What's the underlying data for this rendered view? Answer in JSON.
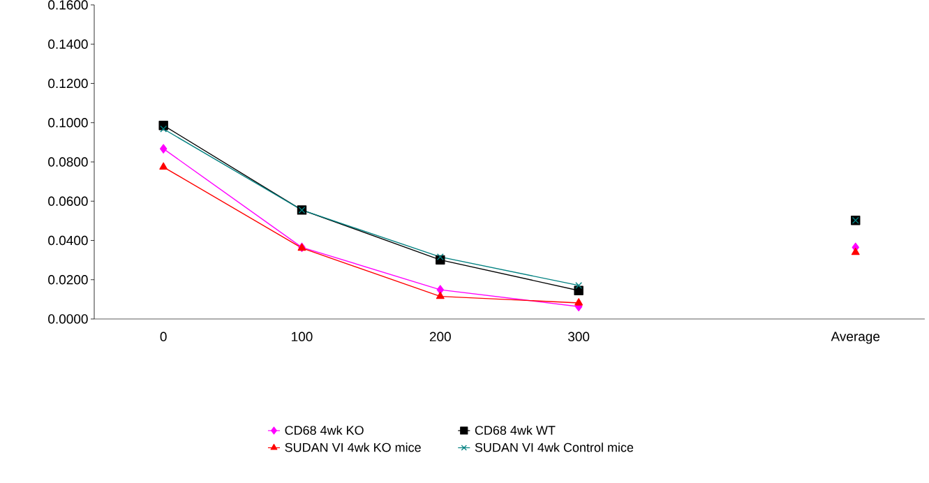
{
  "chart_data": {
    "type": "line",
    "categories": [
      "0",
      "100",
      "200",
      "300",
      null,
      "Average"
    ],
    "series": [
      {
        "name": "CD68 4wk KO",
        "color": "#ff00ff",
        "marker": "diamond",
        "values": [
          0.0867,
          0.0365,
          0.0149,
          0.0063,
          null,
          0.0365
        ]
      },
      {
        "name": "CD68 4wk WT",
        "color": "#000000",
        "marker": "square",
        "values": [
          0.0986,
          0.0555,
          0.0301,
          0.0145,
          null,
          0.0502
        ]
      },
      {
        "name": "SUDAN VI 4wk KO mice",
        "color": "#ff0000",
        "marker": "triangle",
        "values": [
          0.0774,
          0.0361,
          0.0115,
          0.0082,
          null,
          0.0339
        ]
      },
      {
        "name": "SUDAN VI 4wk Control mice",
        "color": "#008080",
        "marker": "cross",
        "values": [
          0.0968,
          0.0555,
          0.0316,
          0.0171,
          null,
          0.0502
        ]
      }
    ],
    "ylim": [
      0,
      0.16
    ],
    "yticks": [
      {
        "value": 0,
        "label": "0.0000"
      },
      {
        "value": 0.02,
        "label": "0.0200"
      },
      {
        "value": 0.04,
        "label": "0.0400"
      },
      {
        "value": 0.06,
        "label": "0.0600"
      },
      {
        "value": 0.08,
        "label": "0.0800"
      },
      {
        "value": 0.1,
        "label": "0.1000"
      },
      {
        "value": 0.12,
        "label": "0.1200"
      },
      {
        "value": 0.14,
        "label": "0.1400"
      },
      {
        "value": 0.16,
        "label": "0.1600"
      }
    ],
    "grid": false,
    "legend": "bottom",
    "line_style": "solid"
  }
}
